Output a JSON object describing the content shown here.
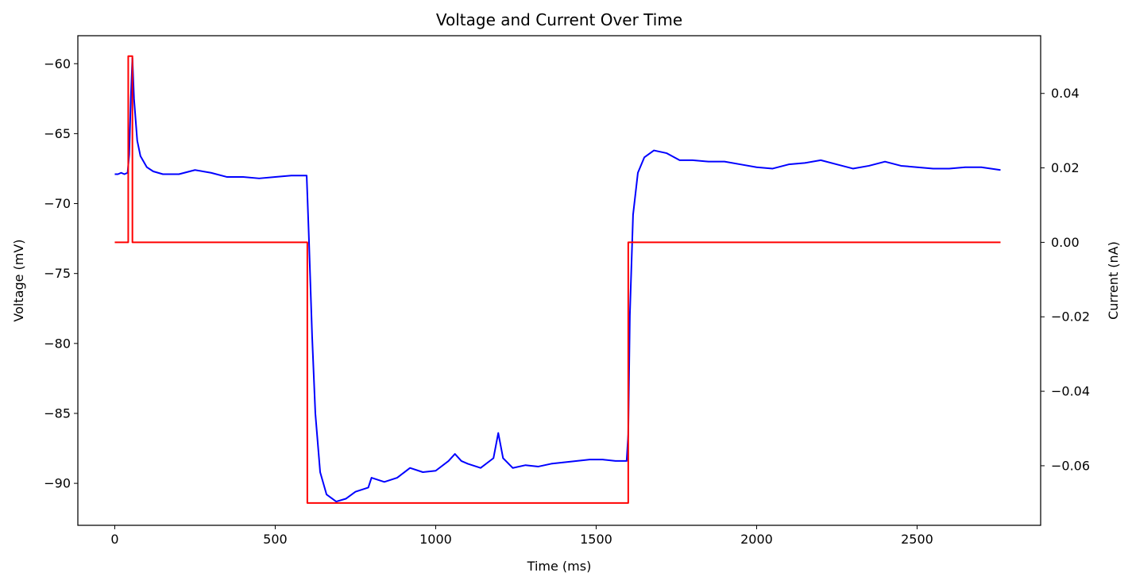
{
  "chart_data": {
    "type": "line",
    "title": "Voltage and Current Over Time",
    "xlabel": "Time (ms)",
    "ylabel": "Voltage (mV)",
    "y2label": "Current (nA)",
    "xlim": [
      -115,
      2885
    ],
    "ylim": [
      -93.0,
      -58.0
    ],
    "y2lim": [
      -0.076,
      0.0555
    ],
    "xticks": [
      0,
      500,
      1000,
      1500,
      2000,
      2500
    ],
    "xtick_labels": [
      "0",
      "500",
      "1000",
      "1500",
      "2000",
      "2500"
    ],
    "yticks": [
      -60,
      -65,
      -70,
      -75,
      -80,
      -85,
      -90
    ],
    "ytick_labels": [
      "−60",
      "−65",
      "−70",
      "−75",
      "−80",
      "−85",
      "−90"
    ],
    "y2ticks": [
      0.04,
      0.02,
      0.0,
      -0.02,
      -0.04,
      -0.06
    ],
    "y2tick_labels": [
      "0.04",
      "0.02",
      "0.00",
      "−0.02",
      "−0.04",
      "−0.06"
    ],
    "grid": false,
    "legend": "none",
    "series": [
      {
        "axis": "left",
        "color": "#0000ff",
        "x": [
          0,
          10,
          20,
          30,
          40,
          45,
          50,
          55,
          60,
          70,
          80,
          100,
          120,
          150,
          200,
          250,
          300,
          350,
          400,
          450,
          500,
          550,
          590,
          598,
          605,
          615,
          625,
          640,
          660,
          690,
          720,
          750,
          790,
          800,
          840,
          880,
          920,
          960,
          1000,
          1040,
          1060,
          1080,
          1100,
          1140,
          1180,
          1195,
          1210,
          1240,
          1280,
          1320,
          1360,
          1400,
          1440,
          1480,
          1520,
          1560,
          1595,
          1600,
          1605,
          1615,
          1630,
          1650,
          1680,
          1720,
          1760,
          1800,
          1850,
          1900,
          1950,
          2000,
          2050,
          2100,
          2150,
          2200,
          2250,
          2300,
          2350,
          2400,
          2450,
          2500,
          2550,
          2600,
          2650,
          2700,
          2760
        ],
        "y": [
          -67.9,
          -67.9,
          -67.8,
          -67.9,
          -67.8,
          -66.5,
          -62.5,
          -59.6,
          -62.5,
          -65.5,
          -66.6,
          -67.4,
          -67.7,
          -67.9,
          -67.9,
          -67.6,
          -67.8,
          -68.1,
          -68.1,
          -68.2,
          -68.1,
          -68.0,
          -68.0,
          -68.0,
          -72.5,
          -79.5,
          -85.0,
          -89.2,
          -90.8,
          -91.3,
          -91.1,
          -90.6,
          -90.3,
          -89.6,
          -89.9,
          -89.6,
          -88.9,
          -89.2,
          -89.1,
          -88.4,
          -87.9,
          -88.4,
          -88.6,
          -88.9,
          -88.2,
          -86.4,
          -88.2,
          -88.9,
          -88.7,
          -88.8,
          -88.6,
          -88.5,
          -88.4,
          -88.3,
          -88.3,
          -88.4,
          -88.4,
          -86.5,
          -78.0,
          -70.8,
          -67.8,
          -66.7,
          -66.2,
          -66.4,
          -66.9,
          -66.9,
          -67.0,
          -67.0,
          -67.2,
          -67.4,
          -67.5,
          -67.2,
          -67.1,
          -66.9,
          -67.2,
          -67.5,
          -67.3,
          -67.0,
          -67.3,
          -67.4,
          -67.5,
          -67.5,
          -67.4,
          -67.4,
          -67.6
        ]
      },
      {
        "axis": "right",
        "color": "#ff0000",
        "x": [
          0,
          42,
          42,
          55,
          55,
          600,
          600,
          1600,
          1600,
          2760
        ],
        "y": [
          0.0,
          0.0,
          0.05,
          0.05,
          0.0,
          0.0,
          -0.07,
          -0.07,
          0.0,
          0.0
        ]
      }
    ]
  }
}
